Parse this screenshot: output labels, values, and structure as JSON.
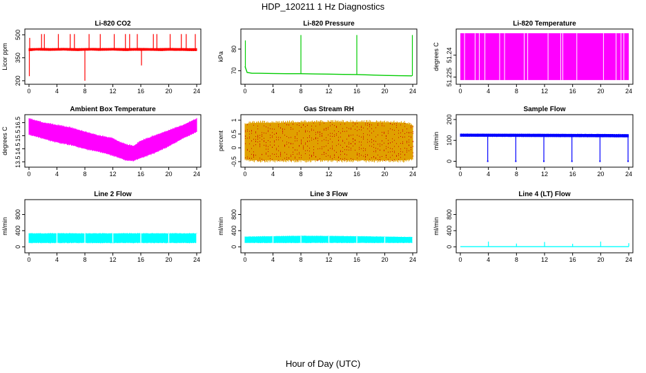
{
  "figure": {
    "title": "HDP_120211  1 Hz Diagnostics",
    "xlabel": "Hour of Day (UTC)"
  },
  "chart_data": [
    {
      "type": "line",
      "title": "Li-820 CO2",
      "ylabel": "Licor ppm",
      "color": "#ff0000",
      "xlim": [
        0,
        24
      ],
      "ylim": [
        195,
        520
      ],
      "xticks": [
        0,
        4,
        8,
        12,
        16,
        20,
        24
      ],
      "yticks": [
        200,
        350,
        500
      ],
      "style": "band",
      "series": [
        {
          "x": [
            0,
            0.3,
            1,
            2,
            3,
            4,
            5,
            6,
            7,
            8,
            9,
            10,
            11,
            12,
            13,
            14,
            15,
            16,
            17,
            18,
            19,
            20,
            21,
            22,
            23,
            24
          ],
          "low": [
            395,
            395,
            398,
            397,
            396,
            397,
            398,
            396,
            395,
            397,
            398,
            396,
            397,
            398,
            396,
            395,
            397,
            396,
            397,
            396,
            395,
            397,
            396,
            396,
            395,
            395
          ],
          "high": [
            412,
            412,
            413,
            414,
            412,
            413,
            414,
            413,
            412,
            413,
            414,
            413,
            413,
            414,
            413,
            412,
            413,
            414,
            413,
            412,
            413,
            414,
            413,
            413,
            412,
            412
          ]
        }
      ],
      "spikes": [
        {
          "x": 0.05,
          "y": 230
        },
        {
          "x": 0.1,
          "y": 480
        },
        {
          "x": 1.8,
          "y": 505
        },
        {
          "x": 2.2,
          "y": 505
        },
        {
          "x": 4.2,
          "y": 505
        },
        {
          "x": 5.9,
          "y": 505
        },
        {
          "x": 6.5,
          "y": 505
        },
        {
          "x": 8.0,
          "y": 200
        },
        {
          "x": 8.6,
          "y": 505
        },
        {
          "x": 10.2,
          "y": 505
        },
        {
          "x": 12.2,
          "y": 505
        },
        {
          "x": 13.8,
          "y": 505
        },
        {
          "x": 14.4,
          "y": 505
        },
        {
          "x": 15.5,
          "y": 505
        },
        {
          "x": 16.1,
          "y": 300
        },
        {
          "x": 17.8,
          "y": 505
        },
        {
          "x": 18.3,
          "y": 505
        },
        {
          "x": 20.2,
          "y": 505
        },
        {
          "x": 21.8,
          "y": 505
        },
        {
          "x": 22.5,
          "y": 505
        },
        {
          "x": 23.8,
          "y": 505
        }
      ]
    },
    {
      "type": "line",
      "title": "Li-820 Pressure",
      "ylabel": "kPa",
      "color": "#00cc00",
      "xlim": [
        0,
        24
      ],
      "ylim": [
        65,
        88
      ],
      "xticks": [
        0,
        4,
        8,
        12,
        16,
        20,
        24
      ],
      "yticks": [
        70,
        80
      ],
      "style": "line",
      "series": [
        {
          "x": [
            0,
            0.3,
            1,
            2,
            4,
            6,
            8,
            10,
            12,
            14,
            16,
            18,
            20,
            22,
            23.9
          ],
          "y": [
            72,
            69.2,
            68.8,
            68.8,
            68.7,
            68.6,
            68.6,
            68.5,
            68.4,
            68.3,
            68.2,
            68.0,
            67.8,
            67.7,
            67.6
          ]
        }
      ],
      "spikes": [
        {
          "x": 0.05,
          "y": 84
        },
        {
          "x": 8.0,
          "y": 86.5
        },
        {
          "x": 16.0,
          "y": 86.5
        },
        {
          "x": 23.95,
          "y": 86.5
        }
      ]
    },
    {
      "type": "line",
      "title": "Li-820 Temperature",
      "ylabel": "degrees C",
      "color": "#ff00ff",
      "xlim": [
        0,
        24
      ],
      "ylim": [
        51.222,
        51.256
      ],
      "xticks": [
        0,
        4,
        8,
        12,
        16,
        20,
        24
      ],
      "yticks": [
        51.225,
        51.24
      ],
      "style": "fill",
      "series": [
        {
          "x": [
            0,
            24
          ],
          "low": [
            51.223,
            51.223
          ],
          "high": [
            51.255,
            51.255
          ]
        }
      ],
      "gaps": [
        0.6,
        2.1,
        2.7,
        3.5,
        5.6,
        6.3,
        9.1,
        9.6,
        12.5,
        14.3,
        14.6,
        16.6,
        20.4,
        22.2,
        22.9,
        23.3
      ]
    },
    {
      "type": "line",
      "title": "Ambient Box Temperature",
      "ylabel": "degrees C",
      "color": "#ff00ff",
      "xlim": [
        0,
        24
      ],
      "ylim": [
        13.3,
        16.9
      ],
      "xticks": [
        0,
        4,
        8,
        12,
        16,
        20,
        24
      ],
      "yticks": [
        13.5,
        14.5,
        15.5,
        16.5
      ],
      "style": "band",
      "series": [
        {
          "x": [
            0,
            2,
            4,
            6,
            8,
            10,
            12,
            13,
            14,
            15,
            16,
            18,
            20,
            22,
            24
          ],
          "low": [
            15.6,
            15.3,
            15.0,
            14.8,
            14.5,
            14.3,
            14.0,
            13.8,
            13.6,
            13.6,
            13.8,
            14.2,
            14.7,
            15.3,
            15.8
          ],
          "high": [
            16.8,
            16.5,
            16.3,
            16.1,
            15.8,
            15.5,
            15.3,
            15.0,
            14.8,
            14.7,
            15.1,
            15.5,
            15.9,
            16.3,
            16.8
          ]
        }
      ]
    },
    {
      "type": "line",
      "title": "Gas Stream RH",
      "ylabel": "percent",
      "color": "#e0a000",
      "color2": "#cc0000",
      "xlim": [
        0,
        24
      ],
      "ylim": [
        -0.6,
        1.1
      ],
      "xticks": [
        0,
        4,
        8,
        12,
        16,
        20,
        24
      ],
      "yticks": [
        -0.5,
        0.0,
        0.5,
        1.0
      ],
      "style": "band",
      "series": [
        {
          "x": [
            0,
            1,
            4,
            8,
            12,
            16,
            20,
            23,
            24
          ],
          "low": [
            -0.4,
            -0.45,
            -0.45,
            -0.45,
            -0.45,
            -0.45,
            -0.45,
            -0.45,
            -0.4
          ],
          "high": [
            0.85,
            0.9,
            0.9,
            0.92,
            0.93,
            0.93,
            0.92,
            0.9,
            0.8
          ]
        }
      ]
    },
    {
      "type": "line",
      "title": "Sample Flow",
      "ylabel": "ml/min",
      "color": "#0000ff",
      "xlim": [
        0,
        24
      ],
      "ylim": [
        -15,
        210
      ],
      "xticks": [
        0,
        4,
        8,
        12,
        16,
        20,
        24
      ],
      "yticks": [
        0,
        100,
        200
      ],
      "style": "band",
      "series": [
        {
          "x": [
            0,
            24
          ],
          "low": [
            118,
            115
          ],
          "high": [
            132,
            130
          ]
        }
      ],
      "dips": [
        4,
        8,
        12,
        16,
        20,
        24
      ]
    },
    {
      "type": "line",
      "title": "Line 2 Flow",
      "ylabel": "ml/min",
      "color": "#00ffff",
      "xlim": [
        0,
        24
      ],
      "ylim": [
        -80,
        1100
      ],
      "xticks": [
        0,
        4,
        8,
        12,
        16,
        20,
        24
      ],
      "yticks": [
        0,
        400,
        800
      ],
      "style": "band",
      "series": [
        {
          "x": [
            0,
            24
          ],
          "low": [
            100,
            100
          ],
          "high": [
            330,
            330
          ]
        }
      ],
      "gaps": [
        4,
        8,
        12,
        16,
        20,
        24
      ]
    },
    {
      "type": "line",
      "title": "Line 3 Flow",
      "ylabel": "ml/min",
      "color": "#00ffff",
      "xlim": [
        0,
        24
      ],
      "ylim": [
        -80,
        1100
      ],
      "xticks": [
        0,
        4,
        8,
        12,
        16,
        20,
        24
      ],
      "yticks": [
        0,
        400,
        800
      ],
      "style": "band",
      "series": [
        {
          "x": [
            0,
            8,
            16,
            24
          ],
          "low": [
            100,
            100,
            100,
            100
          ],
          "high": [
            250,
            270,
            260,
            240
          ]
        }
      ],
      "gaps": [
        4,
        8,
        12,
        16,
        20,
        24
      ]
    },
    {
      "type": "line",
      "title": "Line 4 (LT) Flow",
      "ylabel": "ml/min",
      "color": "#00ffff",
      "xlim": [
        0,
        24
      ],
      "ylim": [
        -80,
        1100
      ],
      "xticks": [
        0,
        4,
        8,
        12,
        16,
        20,
        24
      ],
      "yticks": [
        0,
        400,
        800
      ],
      "style": "line",
      "series": [
        {
          "x": [
            0,
            24
          ],
          "y": [
            5,
            5
          ]
        }
      ],
      "spikes": [
        {
          "x": 4,
          "y": 130
        },
        {
          "x": 8,
          "y": 80
        },
        {
          "x": 12,
          "y": 120
        },
        {
          "x": 16,
          "y": 75
        },
        {
          "x": 20,
          "y": 130
        },
        {
          "x": 24,
          "y": 90
        }
      ]
    }
  ]
}
